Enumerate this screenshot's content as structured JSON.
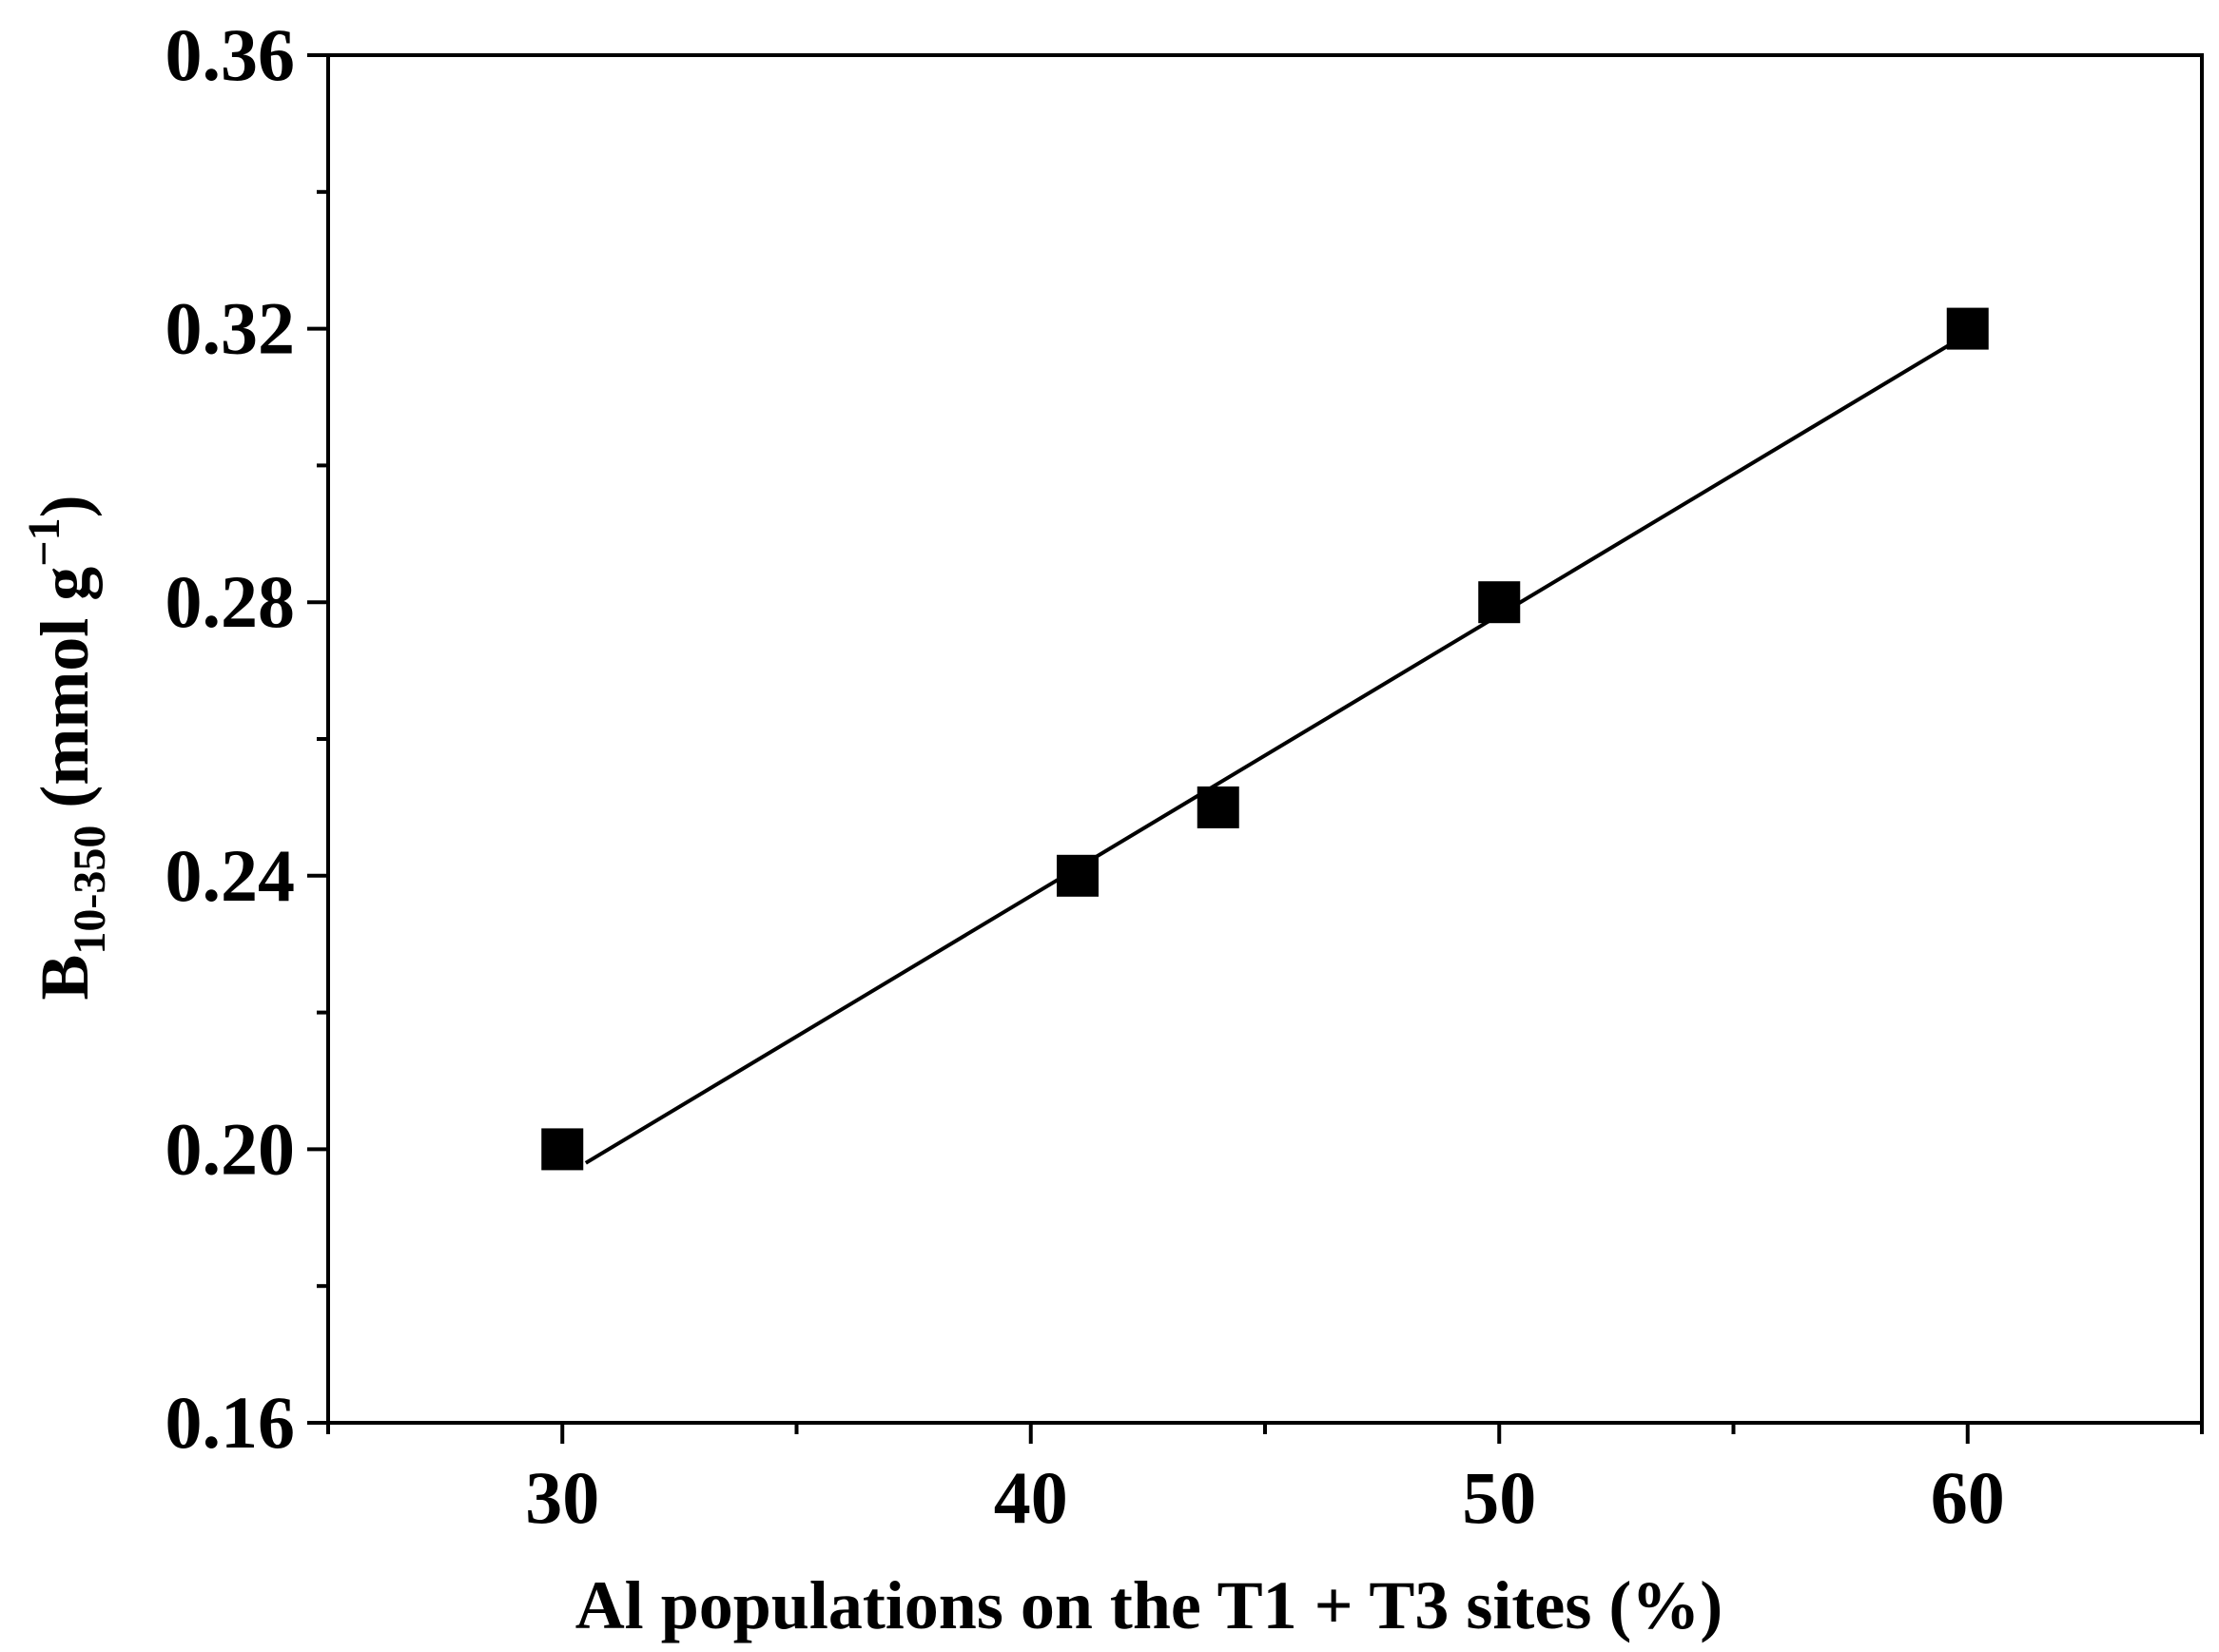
{
  "chart_data": {
    "type": "scatter",
    "xlabel": "Al populations on the T1 + T3 sites (%)",
    "ylabel": {
      "main": "B",
      "subscript": "10-350",
      "unit_prefix": " (mmol g",
      "superscript": "−1",
      "unit_suffix": ")"
    },
    "xlim": [
      25,
      65
    ],
    "ylim": [
      0.16,
      0.36
    ],
    "xticks": [
      30,
      40,
      50,
      60
    ],
    "yticks": [
      0.16,
      0.2,
      0.24,
      0.28,
      0.32,
      0.36
    ],
    "xtick_labels": [
      "30",
      "40",
      "50",
      "60"
    ],
    "ytick_labels": [
      "0.16",
      "0.20",
      "0.24",
      "0.28",
      "0.32",
      "0.36"
    ],
    "x_minor_step": 5,
    "y_minor_step": 0.02,
    "grid": false,
    "legend": "none",
    "series": [
      {
        "marker": "square",
        "color": "#000000",
        "x": [
          30,
          41,
          44,
          50,
          60
        ],
        "y": [
          0.2,
          0.24,
          0.25,
          0.28,
          0.32
        ]
      }
    ],
    "fit_line": {
      "color": "#000000",
      "x": [
        30.5,
        59.7
      ],
      "y": [
        0.198,
        0.318
      ]
    }
  }
}
